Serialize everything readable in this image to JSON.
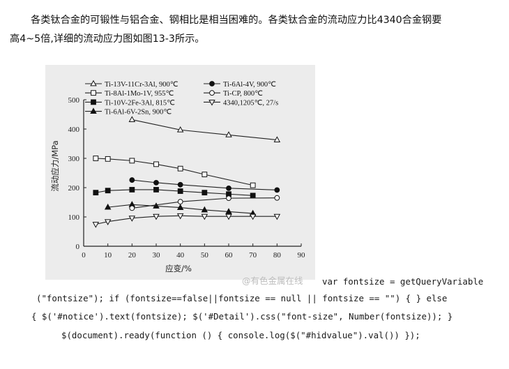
{
  "paragraph": {
    "line1": "各类钛合金的可锻性与铝合金、钢相比是相当困难的。各类钛合金的流动应力比4340合金钢要",
    "line2": "高4~5倍,详细的流动应力图如图13-3所示。"
  },
  "watermark": "@有色金属在线",
  "code": {
    "line1": "var fontsize = getQueryVariable",
    "line2": "(\"fontsize\"); if (fontsize==false||fontsize == null || fontsize == \"\") { } else",
    "line3": "{ $('#notice').text(fontsize); $('#Detail').css(\"font-size\", Number(fontsize)); }",
    "line4": "$(document).ready(function () { console.log($(\"#hidvalue\").val()) });"
  },
  "chart_data": {
    "type": "line",
    "xlabel": "应变/%",
    "ylabel": "流动应力/MPa",
    "xlim": [
      0,
      90
    ],
    "ylim": [
      0,
      500
    ],
    "xticks": [
      10,
      20,
      30,
      40,
      50,
      60,
      70,
      80,
      90
    ],
    "yticks": [
      0,
      100,
      200,
      300,
      400,
      500
    ],
    "x_origin_label": "0",
    "grid": false,
    "legend_position": "top",
    "series": [
      {
        "name": "Ti-13V-11Cr-3Al, 900℃",
        "marker": "triangle-up-open",
        "points": [
          [
            20,
            432
          ],
          [
            40,
            397
          ],
          [
            60,
            380
          ],
          [
            80,
            363
          ]
        ]
      },
      {
        "name": "Ti-8Al-1Mo-1V, 955℃",
        "marker": "square-open",
        "points": [
          [
            5,
            300
          ],
          [
            10,
            298
          ],
          [
            20,
            292
          ],
          [
            30,
            280
          ],
          [
            40,
            265
          ],
          [
            50,
            245
          ],
          [
            70,
            208
          ]
        ]
      },
      {
        "name": "Ti-10V-2Fe-3Al, 815℃",
        "marker": "square-filled",
        "points": [
          [
            5,
            183
          ],
          [
            10,
            190
          ],
          [
            20,
            193
          ],
          [
            30,
            193
          ],
          [
            40,
            188
          ],
          [
            50,
            183
          ],
          [
            60,
            178
          ],
          [
            70,
            173
          ]
        ]
      },
      {
        "name": "Ti-6Al-6V-2Sn, 900℃",
        "marker": "triangle-up-filled",
        "points": [
          [
            10,
            133
          ],
          [
            20,
            142
          ],
          [
            30,
            137
          ],
          [
            40,
            132
          ],
          [
            50,
            124
          ],
          [
            60,
            118
          ],
          [
            70,
            112
          ]
        ]
      },
      {
        "name": "Ti-6Al-4V, 900℃",
        "marker": "circle-filled",
        "points": [
          [
            20,
            226
          ],
          [
            30,
            217
          ],
          [
            40,
            210
          ],
          [
            60,
            198
          ],
          [
            80,
            192
          ]
        ]
      },
      {
        "name": "Ti-CP, 800℃",
        "marker": "circle-open",
        "points": [
          [
            20,
            130
          ],
          [
            40,
            152
          ],
          [
            60,
            164
          ],
          [
            80,
            165
          ]
        ]
      },
      {
        "name": "4340,1205℃, 27/s",
        "marker": "triangle-down-open",
        "points": [
          [
            5,
            75
          ],
          [
            10,
            84
          ],
          [
            20,
            96
          ],
          [
            30,
            102
          ],
          [
            40,
            104
          ],
          [
            50,
            102
          ],
          [
            60,
            102
          ],
          [
            70,
            102
          ],
          [
            80,
            102
          ]
        ]
      }
    ]
  }
}
